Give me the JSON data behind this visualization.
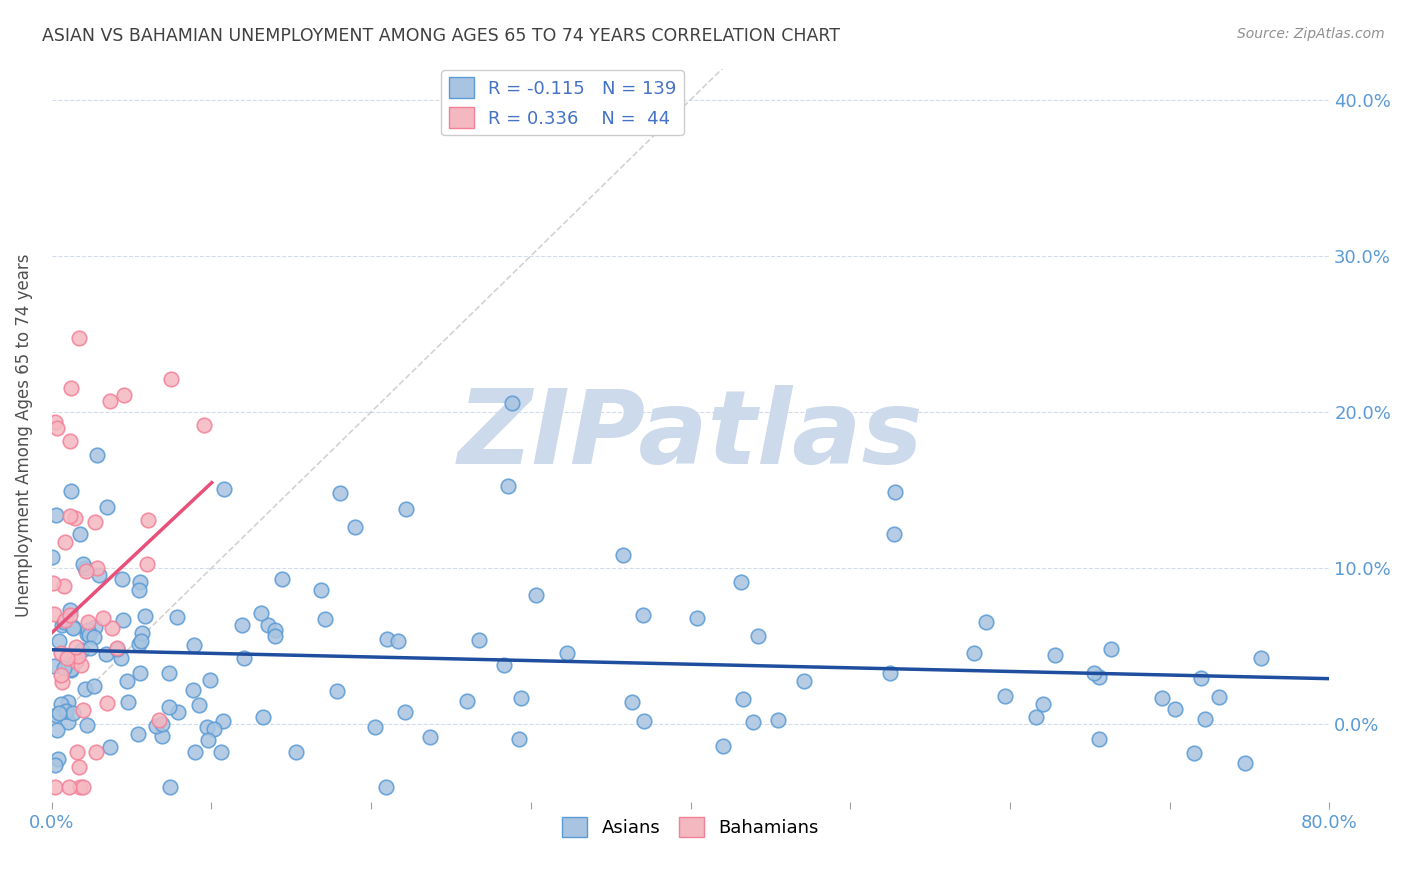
{
  "title": "ASIAN VS BAHAMIAN UNEMPLOYMENT AMONG AGES 65 TO 74 YEARS CORRELATION CHART",
  "source": "Source: ZipAtlas.com",
  "ylabel": "Unemployment Among Ages 65 to 74 years",
  "asian_R": -0.115,
  "asian_N": 139,
  "bahamian_R": 0.336,
  "bahamian_N": 44,
  "asian_color": "#a8c4e0",
  "asian_edge_color": "#5b9bd5",
  "bahamian_color": "#f4b8c1",
  "bahamian_edge_color": "#f48098",
  "trend_asian_color": "#1f4e9e",
  "trend_bahamian_color": "#e8507a",
  "identity_line_color": "#c0c0c0",
  "watermark_color": "#ccdaeb",
  "watermark_text": "ZIPatlas",
  "legend_color": "#4472c4",
  "background_color": "#ffffff",
  "grid_color": "#d0d8e8",
  "xlim": [
    0.0,
    0.8
  ],
  "ylim": [
    -0.05,
    0.42
  ],
  "asian_seed": 42,
  "bahamian_seed": 7
}
